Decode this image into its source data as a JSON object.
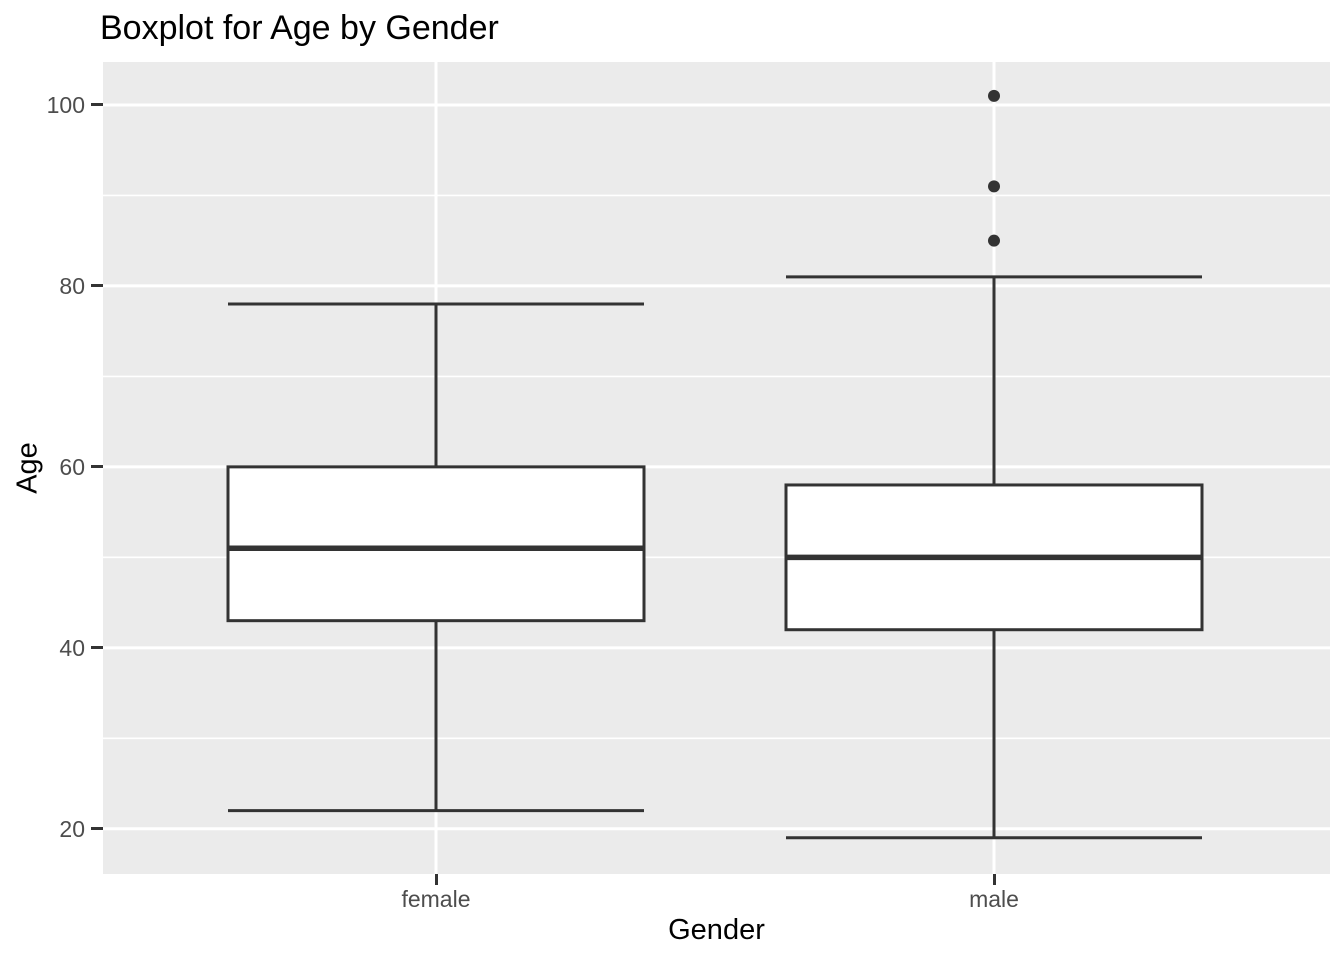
{
  "title": "Boxplot for Age by Gender",
  "colors": {
    "panel_background": "#EBEBEB",
    "gridline": "#FFFFFF",
    "box_stroke": "#333333",
    "box_fill": "#FFFFFF",
    "outlier_dot": "#333333",
    "tick_label": "#4D4D4D",
    "axis_title": "#000000",
    "title": "#000000"
  },
  "chart_data": {
    "type": "boxplot",
    "title": "Boxplot for Age by Gender",
    "xlabel": "Gender",
    "ylabel": "Age",
    "categories": [
      "female",
      "male"
    ],
    "series": [
      {
        "name": "female",
        "min": 22,
        "q1": 43,
        "median": 51,
        "q3": 60,
        "max": 78,
        "outliers": []
      },
      {
        "name": "male",
        "min": 19,
        "q1": 42,
        "median": 50,
        "q3": 58,
        "max": 81,
        "outliers": [
          85,
          91,
          101
        ]
      }
    ],
    "y_ticks": [
      20,
      40,
      60,
      80,
      100
    ],
    "y_minor_ticks": [
      30,
      50,
      70,
      90
    ],
    "ylim": [
      15.0,
      104.75
    ],
    "grid": true,
    "legend": false,
    "orientation": "vertical"
  }
}
